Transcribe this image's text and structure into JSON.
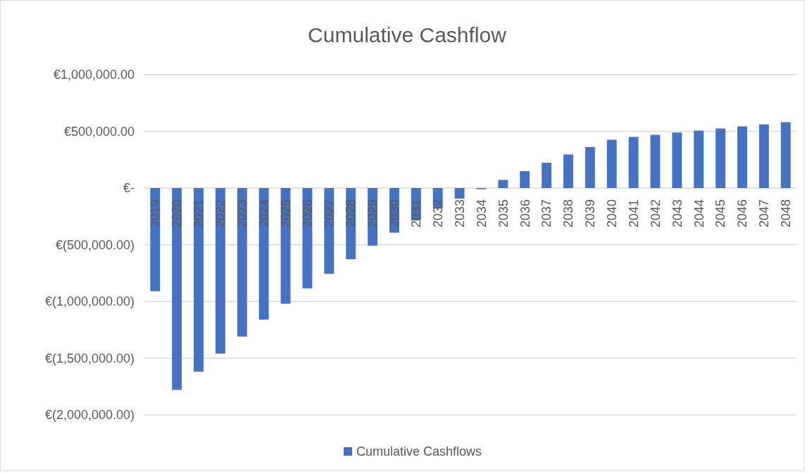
{
  "chart_data": {
    "type": "bar",
    "title": "Cumulative Cashflow",
    "categories": [
      "2019",
      "2020",
      "2021",
      "2022",
      "2023",
      "2024",
      "2025",
      "2026",
      "2027",
      "2028",
      "2029",
      "2030",
      "2031",
      "2032",
      "2033",
      "2034",
      "2035",
      "2036",
      "2037",
      "2038",
      "2039",
      "2040",
      "2041",
      "2042",
      "2043",
      "2044",
      "2045",
      "2046",
      "2047",
      "2048"
    ],
    "series": [
      {
        "name": "Cumulative Cashflows",
        "color": "#4472c4",
        "values": [
          -910000,
          -1780000,
          -1620000,
          -1460000,
          -1310000,
          -1160000,
          -1020000,
          -885000,
          -756000,
          -628000,
          -508000,
          -394000,
          -286000,
          -180000,
          -93000,
          -10000,
          72000,
          149000,
          223000,
          296000,
          362000,
          426000,
          451000,
          469000,
          490000,
          506000,
          525000,
          544000,
          562000,
          581000
        ]
      }
    ],
    "ylim": [
      -2000000,
      1000000
    ],
    "yticks": [
      {
        "value": -2000000,
        "label": "€(2,000,000.00)"
      },
      {
        "value": -1500000,
        "label": "€(1,500,000.00)"
      },
      {
        "value": -1000000,
        "label": "€(1,000,000.00)"
      },
      {
        "value": -500000,
        "label": "€(500,000.00)"
      },
      {
        "value": 0,
        "label": "€-"
      },
      {
        "value": 500000,
        "label": "€500,000.00"
      },
      {
        "value": 1000000,
        "label": "€1,000,000.00"
      }
    ],
    "grid": "y",
    "legend": "bottom"
  }
}
